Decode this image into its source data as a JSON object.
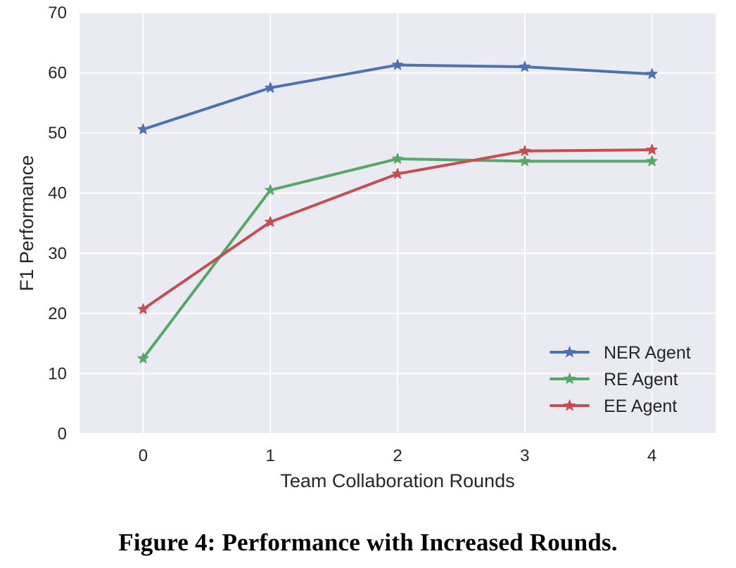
{
  "caption": "Figure 4: Performance with Increased Rounds.",
  "colors": {
    "plot_background": "#eaeaf2",
    "grid": "#ffffff",
    "text": "#262626",
    "ner": "#4c72b0",
    "re": "#55a868",
    "ee": "#c44e52"
  },
  "chart_data": {
    "type": "line",
    "title": "",
    "xlabel": "Team Collaboration Rounds",
    "ylabel": "F1 Performance",
    "x": [
      0,
      1,
      2,
      3,
      4
    ],
    "x_ticks": [
      "0",
      "1",
      "2",
      "3",
      "4"
    ],
    "y_ticks": [
      "0",
      "10",
      "20",
      "30",
      "40",
      "50",
      "60",
      "70"
    ],
    "xlim": [
      -0.5,
      4.5
    ],
    "ylim": [
      0,
      70
    ],
    "grid": true,
    "legend_position": "lower-right",
    "marker": "star",
    "series": [
      {
        "name": "NER Agent",
        "color": "#4c72b0",
        "values": [
          50.6,
          57.5,
          61.3,
          61.0,
          59.8
        ]
      },
      {
        "name": "RE Agent",
        "color": "#55a868",
        "values": [
          12.5,
          40.5,
          45.7,
          45.3,
          45.3
        ]
      },
      {
        "name": "EE Agent",
        "color": "#c44e52",
        "values": [
          20.7,
          35.2,
          43.2,
          47.0,
          47.2
        ]
      }
    ]
  }
}
